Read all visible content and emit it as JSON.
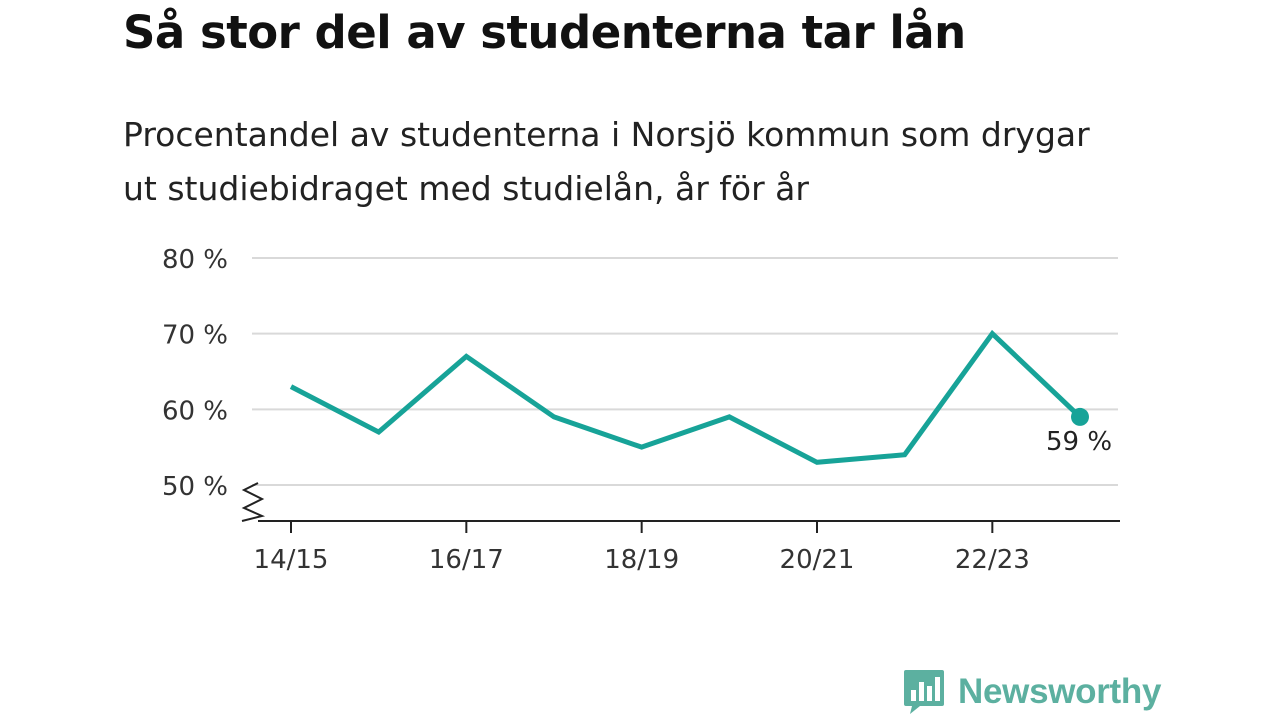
{
  "title": "Så stor del av studenterna tar lån",
  "subtitle": "Procentandel av studenterna i Norsjö kommun som drygar ut studiebidraget med studielån, år för år",
  "brand": {
    "name": "Newsworthy",
    "color": "#5cb0a0"
  },
  "colors": {
    "line": "#17a398",
    "grid": "#d9d9d9",
    "axis": "#222222"
  },
  "chart_data": {
    "type": "line",
    "x": [
      "14/15",
      "15/16",
      "16/17",
      "17/18",
      "18/19",
      "19/20",
      "20/21",
      "21/22",
      "22/23",
      "23/24"
    ],
    "x_tick_labels": [
      "14/15",
      "16/17",
      "18/19",
      "20/21",
      "22/23"
    ],
    "y_ticks": [
      50,
      60,
      70,
      80
    ],
    "y_tick_labels": [
      "50 %",
      "60 %",
      "70 %",
      "80 %"
    ],
    "ylim": [
      50,
      80
    ],
    "y_axis_break": true,
    "grid": true,
    "series": [
      {
        "values": [
          63,
          57,
          67,
          59,
          55,
          59,
          53,
          54,
          70,
          59
        ]
      }
    ],
    "end_label": "59 %"
  }
}
